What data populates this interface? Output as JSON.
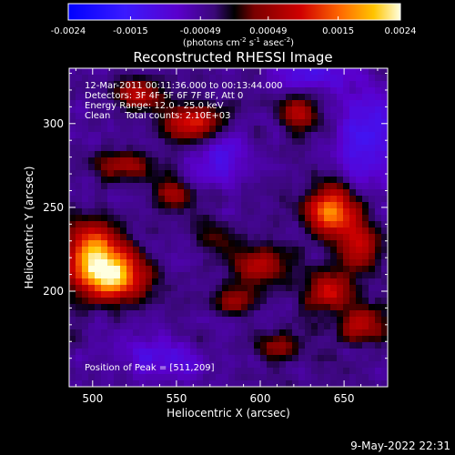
{
  "chart_data": {
    "type": "heatmap",
    "title": "Reconstructed RHESSI Image",
    "xlabel": "Heliocentric X (arcsec)",
    "ylabel": "Heliocentric Y (arcsec)",
    "xlim": [
      486,
      676
    ],
    "ylim": [
      143,
      333
    ],
    "x_ticks": [
      500,
      550,
      600,
      650
    ],
    "y_ticks": [
      200,
      250,
      300
    ],
    "colorbar": {
      "min": -0.0024,
      "max": 0.0024,
      "tick_values": [
        -0.0024,
        -0.0015,
        -0.00049,
        0.00049,
        0.0015,
        0.0024
      ],
      "tick_labels": [
        "-0.0024",
        "-0.0015",
        "-0.00049",
        "0.00049",
        "0.0015",
        "0.0024"
      ],
      "unit_label": {
        "base": "(photons cm",
        "exp1": "-2",
        "s": " s",
        "exp2": "-1",
        "asec": " asec",
        "exp3": "-2",
        "close": ")"
      }
    },
    "annotations": [
      "12-Mar-2011 00:11:36.000 to 00:13:44.000",
      "Detectors: 3F 4F 5F 6F 7F 8F, Att 0",
      "Energy Range: 12.0 - 25.0 keV",
      "Clean     Total counts: 2.10E+03"
    ],
    "peak_label": "Position of Peak = [511,209]",
    "peak_position": [
      511,
      209
    ],
    "emission_blobs": [
      {
        "x": 511,
        "y": 209,
        "amp": 0.0024,
        "sx": 14,
        "sy": 10
      },
      {
        "x": 500,
        "y": 225,
        "amp": 0.0018,
        "sx": 12,
        "sy": 12
      },
      {
        "x": 642,
        "y": 249,
        "amp": 0.0021,
        "sx": 10,
        "sy": 9
      },
      {
        "x": 658,
        "y": 228,
        "amp": 0.0013,
        "sx": 9,
        "sy": 12
      },
      {
        "x": 560,
        "y": 300,
        "amp": 0.0015,
        "sx": 13,
        "sy": 8
      },
      {
        "x": 622,
        "y": 306,
        "amp": 0.0013,
        "sx": 8,
        "sy": 7
      },
      {
        "x": 528,
        "y": 318,
        "amp": 0.0012,
        "sx": 10,
        "sy": 6
      },
      {
        "x": 548,
        "y": 258,
        "amp": 0.0011,
        "sx": 8,
        "sy": 6
      },
      {
        "x": 640,
        "y": 200,
        "amp": 0.0013,
        "sx": 10,
        "sy": 8
      },
      {
        "x": 600,
        "y": 215,
        "amp": 0.0011,
        "sx": 12,
        "sy": 8
      },
      {
        "x": 660,
        "y": 180,
        "amp": 0.0012,
        "sx": 10,
        "sy": 8
      },
      {
        "x": 585,
        "y": 195,
        "amp": 0.0009,
        "sx": 8,
        "sy": 7
      },
      {
        "x": 612,
        "y": 168,
        "amp": 0.0009,
        "sx": 10,
        "sy": 6
      },
      {
        "x": 520,
        "y": 275,
        "amp": 0.001,
        "sx": 12,
        "sy": 6
      },
      {
        "x": 575,
        "y": 232,
        "amp": 0.0007,
        "sx": 8,
        "sy": 6
      },
      {
        "x": 665,
        "y": 290,
        "amp": -0.001,
        "sx": 14,
        "sy": 20
      },
      {
        "x": 630,
        "y": 330,
        "amp": -0.0009,
        "sx": 14,
        "sy": 6
      },
      {
        "x": 575,
        "y": 280,
        "amp": -0.0007,
        "sx": 12,
        "sy": 12
      },
      {
        "x": 540,
        "y": 160,
        "amp": -0.0007,
        "sx": 16,
        "sy": 10
      }
    ]
  },
  "timestamp": "9-May-2022 22:31"
}
